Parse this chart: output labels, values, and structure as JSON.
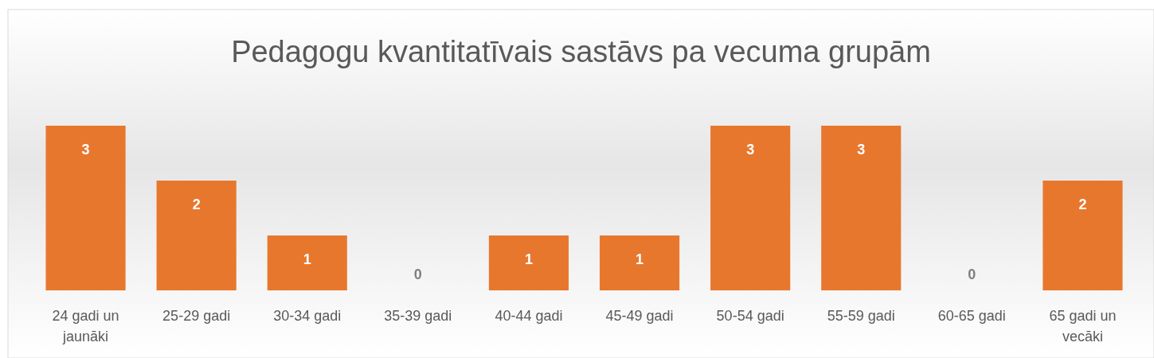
{
  "chart_data": {
    "type": "bar",
    "title": "Pedagogu kvantitatīvais sastāvs pa vecuma grupām",
    "categories": [
      "24 gadi un jaunāki",
      "25-29 gadi",
      "30-34 gadi",
      "35-39 gadi",
      "40-44 gadi",
      "45-49 gadi",
      "50-54 gadi",
      "55-59 gadi",
      "60-65 gadi",
      "65 gadi un vecāki"
    ],
    "values": [
      3,
      2,
      1,
      0,
      1,
      1,
      3,
      3,
      0,
      2
    ],
    "color": "#e8772e",
    "data_labels": true
  }
}
